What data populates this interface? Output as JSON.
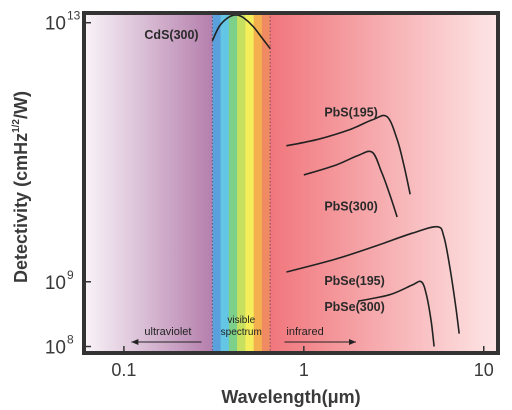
{
  "chart_data": {
    "type": "line",
    "title": "",
    "xlabel": "Wavelength(μm)",
    "ylabel_main": "Detectivity (cmHz",
    "ylabel_sup": "1/2",
    "ylabel_end": "/W)",
    "x_scale": "log",
    "y_scale": "log",
    "xlim": [
      0.06,
      12
    ],
    "ylim_exponents": [
      7.9,
      13.15
    ],
    "x_ticks": [
      {
        "value": 0.1,
        "label": "0.1"
      },
      {
        "value": 1,
        "label": "1"
      },
      {
        "value": 10,
        "label": "10"
      }
    ],
    "y_ticks": [
      {
        "exp": 8,
        "base": "10",
        "sup": "8"
      },
      {
        "exp": 9,
        "base": "10",
        "sup": "9"
      },
      {
        "exp": 13,
        "base": "10",
        "sup": "13"
      }
    ],
    "regions": {
      "ultraviolet": "ultraviolet",
      "visible": [
        "visible",
        "spectrum"
      ],
      "infrared": "infrared",
      "visible_range_um": [
        0.31,
        0.65
      ]
    },
    "spectrum_colors": [
      "#5aa0dc",
      "#62c6e4",
      "#7dd08a",
      "#c8e060",
      "#f4ee5a",
      "#f4b04e",
      "#f08a62"
    ],
    "region_colors": {
      "uv_light": "#f9f4f8",
      "uv_dark": "#b57fad",
      "ir_strong": "#f0767c",
      "ir_light": "#fde6e6"
    },
    "series": [
      {
        "name": "CdS(300)",
        "label_pos": [
          0.13,
          12.75
        ],
        "points": [
          [
            0.31,
            12.72
          ],
          [
            0.34,
            12.95
          ],
          [
            0.38,
            13.08
          ],
          [
            0.42,
            13.12
          ],
          [
            0.46,
            13.08
          ],
          [
            0.52,
            12.95
          ],
          [
            0.58,
            12.78
          ],
          [
            0.65,
            12.6
          ]
        ]
      },
      {
        "name": "PbS(195)",
        "label_pos": [
          1.3,
          11.55
        ],
        "points": [
          [
            0.8,
            11.1
          ],
          [
            1.2,
            11.2
          ],
          [
            1.8,
            11.35
          ],
          [
            2.4,
            11.5
          ],
          [
            2.9,
            11.55
          ],
          [
            3.3,
            11.2
          ],
          [
            3.6,
            10.8
          ],
          [
            3.9,
            10.35
          ]
        ]
      },
      {
        "name": "PbS(300)",
        "label_pos": [
          1.3,
          10.1
        ],
        "points": [
          [
            1.0,
            10.65
          ],
          [
            1.5,
            10.8
          ],
          [
            2.0,
            10.95
          ],
          [
            2.4,
            11.0
          ],
          [
            2.7,
            10.7
          ],
          [
            3.0,
            10.35
          ],
          [
            3.3,
            10.0
          ]
        ]
      },
      {
        "name": "PbSe(195)",
        "label_pos": [
          1.3,
          8.95
        ],
        "points": [
          [
            0.8,
            9.15
          ],
          [
            1.5,
            9.35
          ],
          [
            2.5,
            9.55
          ],
          [
            4.0,
            9.75
          ],
          [
            5.5,
            9.85
          ],
          [
            6.0,
            9.7
          ],
          [
            6.5,
            9.2
          ],
          [
            7.0,
            8.6
          ],
          [
            7.3,
            8.2
          ]
        ]
      },
      {
        "name": "PbSe(300)",
        "label_pos": [
          1.3,
          8.55
        ],
        "points": [
          [
            2.0,
            8.7
          ],
          [
            3.0,
            8.8
          ],
          [
            4.0,
            8.95
          ],
          [
            4.5,
            9.0
          ],
          [
            4.8,
            8.8
          ],
          [
            5.1,
            8.4
          ],
          [
            5.3,
            8.0
          ]
        ]
      }
    ]
  }
}
